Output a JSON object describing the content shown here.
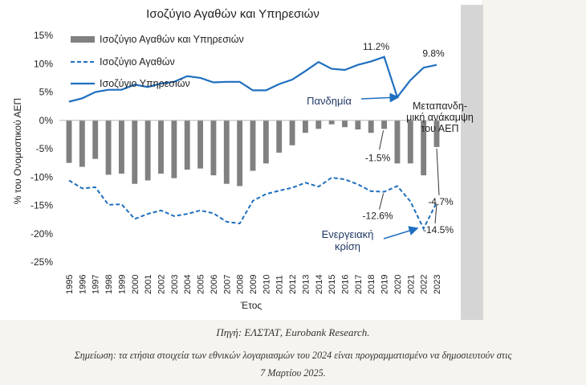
{
  "chart_data": {
    "type": "bar+line",
    "title": "Ισοζύγιο Αγαθών και Υπηρεσιών",
    "xlabel": "Έτος",
    "ylabel": "% του Ονομαστικού ΑΕΠ",
    "ylim": [
      -25,
      15
    ],
    "yticks": [
      15,
      10,
      5,
      0,
      -5,
      -10,
      -15,
      -20,
      -25
    ],
    "ytick_labels": [
      "15%",
      "10%",
      "5%",
      "0%",
      "-5%",
      "-10%",
      "-15%",
      "-20%",
      "-25%"
    ],
    "categories": [
      "1995",
      "1996",
      "1997",
      "1998",
      "1999",
      "2000",
      "2001",
      "2002",
      "2003",
      "2004",
      "2005",
      "2006",
      "2007",
      "2008",
      "2009",
      "2010",
      "2011",
      "2012",
      "2013",
      "2014",
      "2015",
      "2016",
      "2017",
      "2018",
      "2019",
      "2020",
      "2021",
      "2022",
      "2023"
    ],
    "legend_position": "top-left",
    "grid": false,
    "series": [
      {
        "name": "Ισοζύγιο Αγαθών και Υπηρεσιών",
        "kind": "bar",
        "color": "#808080",
        "values": [
          -7.5,
          -8.2,
          -6.8,
          -9.6,
          -9.4,
          -11.2,
          -10.6,
          -9.4,
          -10.2,
          -8.7,
          -8.5,
          -9.7,
          -11.2,
          -11.6,
          -8.9,
          -7.6,
          -5.7,
          -4.4,
          -2.2,
          -1.5,
          -0.7,
          -1.2,
          -1.6,
          -2.2,
          -1.5,
          -7.6,
          -7.6,
          -9.7,
          -4.7
        ]
      },
      {
        "name": "Ισοζύγιο Αγαθών",
        "kind": "line-dashed",
        "color": "#1f6fbf",
        "values": [
          -10.6,
          -12.0,
          -11.8,
          -14.9,
          -14.8,
          -17.4,
          -16.5,
          -15.9,
          -16.9,
          -16.5,
          -15.9,
          -16.4,
          -17.9,
          -18.2,
          -14.2,
          -13.0,
          -12.4,
          -11.9,
          -11.0,
          -11.7,
          -10.1,
          -10.4,
          -11.3,
          -12.5,
          -12.6,
          -11.6,
          -14.3,
          -19.1,
          -14.5
        ]
      },
      {
        "name": "Ισοζύγιο Υπηρεσιών",
        "kind": "line-solid",
        "color": "#1f6fbf",
        "values": [
          3.3,
          3.9,
          5.0,
          5.4,
          5.4,
          6.3,
          5.9,
          6.5,
          6.8,
          7.8,
          7.5,
          6.7,
          6.8,
          6.8,
          5.3,
          5.3,
          6.4,
          7.2,
          8.7,
          10.3,
          9.1,
          8.9,
          9.8,
          10.4,
          11.2,
          4.1,
          7.1,
          9.3,
          9.8
        ]
      }
    ],
    "data_labels": [
      {
        "text": "11.2%",
        "series": 2,
        "category": "2019"
      },
      {
        "text": "9.8%",
        "series": 2,
        "category": "2023"
      },
      {
        "text": "-1.5%",
        "series": 0,
        "category": "2019"
      },
      {
        "text": "-4.7%",
        "series": 0,
        "category": "2023"
      },
      {
        "text": "-12.6%",
        "series": 1,
        "category": "2019"
      },
      {
        "text": "-14.5%",
        "series": 1,
        "category": "2023"
      }
    ],
    "annotations": [
      {
        "text": [
          "Πανδημία"
        ],
        "target_category": "2020"
      },
      {
        "text": [
          "Μεταπανδη-",
          "μική ανάκαμψη",
          "του ΑΕΠ"
        ],
        "target_category": "2023"
      },
      {
        "text": [
          "Ενεργειακή",
          "κρίση"
        ],
        "target_category": "2022"
      }
    ]
  },
  "captions": {
    "source": "Πηγή: ΕΛΣΤΑΤ, Eurobank Research.",
    "note_prefix": "Σημείωση: τα ετήσια στοιχεία των εθνικών λογαριασμών του ",
    "note_year": "2024",
    "note_mid": " είναι προγραμματισμένο να δημοσιευτούν στις ",
    "note_date": "7 Μαρτίου 2025."
  }
}
